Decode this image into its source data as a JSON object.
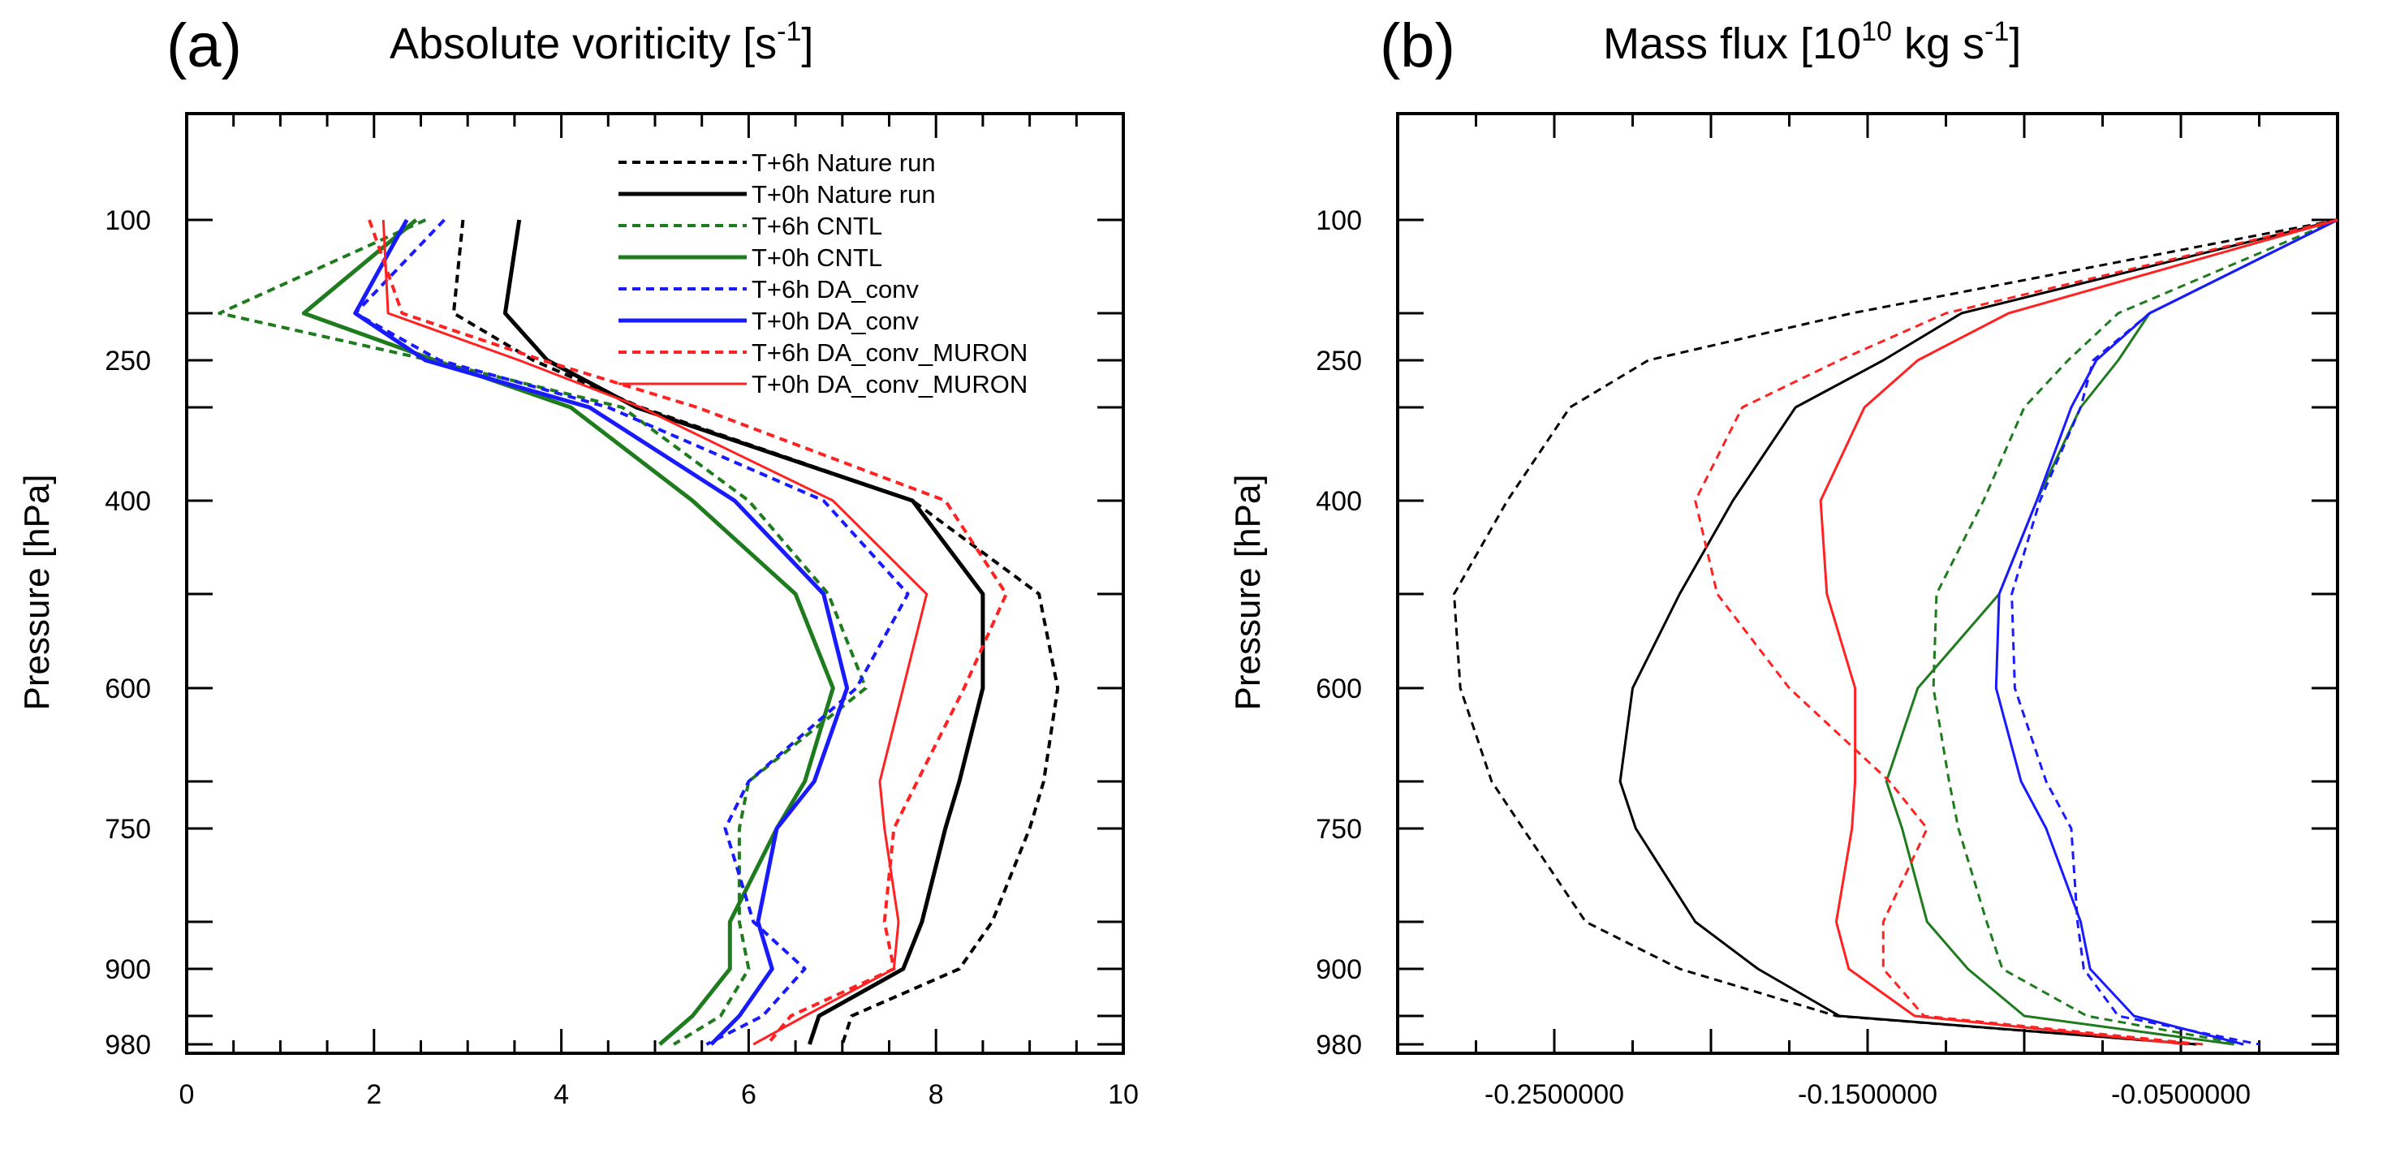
{
  "figure": {
    "panels": [
      {
        "letter": "(a)",
        "title_main": "Absolute voriticity  [s",
        "title_sup": "-1",
        "title_end": "]"
      },
      {
        "letter": "(b)",
        "title_main": "Mass flux  [10",
        "title_sup": "10",
        "title_mid": " kg s",
        "title_sup2": "-1",
        "title_end": "]"
      }
    ]
  },
  "colors": {
    "black": "#000000",
    "green": "#1e7b1e",
    "blue": "#1a1aff",
    "red": "#ff2222"
  },
  "chart_data": [
    {
      "type": "line",
      "panel": "a",
      "title": "Absolute voriticity  [s-1]",
      "xlabel": "",
      "ylabel": "Pressure  [hPa]",
      "xlim": [
        0,
        10
      ],
      "xticks": [
        0,
        2,
        4,
        6,
        8,
        10
      ],
      "xticklabels": [
        "0",
        "2",
        "4",
        "6",
        "8",
        "10"
      ],
      "y_levels_hPa": [
        100,
        200,
        250,
        300,
        400,
        500,
        600,
        700,
        750,
        850,
        900,
        950,
        980
      ],
      "yticklabels": [
        "100",
        "250",
        "400",
        "600",
        "750",
        "900",
        "980"
      ],
      "legend": {
        "location": "top-right",
        "entries": [
          "T+6h  Nature run",
          "T+0h  Nature run",
          "T+6h  CNTL",
          "T+0h  CNTL",
          "T+6h  DA_conv",
          "T+0h  DA_conv",
          "T+6h  DA_conv_MURON",
          "T+0h  DA_conv_MURON"
        ]
      },
      "series": [
        {
          "name": "T+6h  Nature run",
          "color": "black",
          "dashed": true,
          "width": 4,
          "values": [
            2.95,
            2.85,
            3.7,
            4.85,
            7.75,
            9.1,
            9.3,
            9.15,
            9.0,
            8.6,
            8.25,
            7.1,
            7.0
          ]
        },
        {
          "name": "T+0h  Nature run",
          "color": "black",
          "dashed": false,
          "width": 5,
          "values": [
            3.55,
            3.4,
            3.85,
            4.8,
            7.75,
            8.5,
            8.5,
            8.25,
            8.1,
            7.85,
            7.65,
            6.75,
            6.65
          ]
        },
        {
          "name": "T+6h  CNTL",
          "color": "green",
          "dashed": true,
          "width": 4,
          "values": [
            2.55,
            0.35,
            2.6,
            4.65,
            6.0,
            6.85,
            7.25,
            6.0,
            5.9,
            5.9,
            6.0,
            5.7,
            5.2
          ]
        },
        {
          "name": "T+0h  CNTL",
          "color": "green",
          "dashed": false,
          "width": 5,
          "values": [
            2.45,
            1.25,
            2.65,
            4.1,
            5.4,
            6.5,
            6.9,
            6.6,
            6.3,
            5.8,
            5.8,
            5.4,
            5.05
          ]
        },
        {
          "name": "T+6h  DA_conv",
          "color": "blue",
          "dashed": true,
          "width": 4,
          "values": [
            2.75,
            1.8,
            2.7,
            4.5,
            6.8,
            7.7,
            7.15,
            6.0,
            5.75,
            6.05,
            6.6,
            6.15,
            5.55
          ]
        },
        {
          "name": "T+0h  DA_conv",
          "color": "blue",
          "dashed": false,
          "width": 5,
          "values": [
            2.35,
            1.8,
            2.55,
            4.3,
            5.85,
            6.8,
            7.05,
            6.7,
            6.3,
            6.1,
            6.25,
            5.9,
            5.6
          ]
        },
        {
          "name": "T+6h  DA_conv_MURON",
          "color": "red",
          "dashed": true,
          "width": 4,
          "values": [
            1.95,
            2.3,
            3.8,
            5.45,
            8.1,
            8.75,
            8.3,
            7.8,
            7.55,
            7.45,
            7.55,
            6.45,
            6.2
          ]
        },
        {
          "name": "T+0h  DA_conv_MURON",
          "color": "red",
          "dashed": false,
          "width": 3,
          "values": [
            2.1,
            2.15,
            3.55,
            4.85,
            6.9,
            7.9,
            7.65,
            7.4,
            7.45,
            7.6,
            7.55,
            6.6,
            6.05
          ]
        }
      ]
    },
    {
      "type": "line",
      "panel": "b",
      "title": "Mass flux  [10^10 kg s-1]",
      "xlabel": "",
      "ylabel": "Pressure [hPa]",
      "xlim": [
        -0.3,
        0.0
      ],
      "xticks": [
        -0.25,
        -0.15,
        -0.05
      ],
      "xticklabels": [
        "-0.2500000",
        "-0.1500000",
        "-0.0500000"
      ],
      "y_levels_hPa": [
        100,
        200,
        250,
        300,
        400,
        500,
        600,
        700,
        750,
        850,
        900,
        950,
        980
      ],
      "yticklabels": [
        "100",
        "250",
        "400",
        "600",
        "750",
        "900",
        "980"
      ],
      "series": [
        {
          "name": "T+6h  Nature run",
          "color": "black",
          "dashed": true,
          "width": 3,
          "values": [
            0.0,
            -0.155,
            -0.22,
            -0.245,
            -0.265,
            -0.282,
            -0.28,
            -0.27,
            -0.26,
            -0.24,
            -0.21,
            -0.16,
            -0.045
          ]
        },
        {
          "name": "T+0h  Nature run",
          "color": "black",
          "dashed": false,
          "width": 3,
          "values": [
            0.0,
            -0.12,
            -0.145,
            -0.173,
            -0.193,
            -0.21,
            -0.225,
            -0.229,
            -0.224,
            -0.205,
            -0.185,
            -0.159,
            -0.045
          ]
        },
        {
          "name": "T+6h  CNTL",
          "color": "green",
          "dashed": true,
          "width": 3,
          "values": [
            0.0,
            -0.07,
            -0.086,
            -0.1,
            -0.113,
            -0.128,
            -0.129,
            -0.124,
            -0.121,
            -0.112,
            -0.107,
            -0.08,
            -0.03
          ]
        },
        {
          "name": "T+0h  CNTL",
          "color": "green",
          "dashed": false,
          "width": 3,
          "values": [
            0.0,
            -0.06,
            -0.07,
            -0.082,
            -0.096,
            -0.108,
            -0.134,
            -0.144,
            -0.139,
            -0.131,
            -0.118,
            -0.1,
            -0.033
          ]
        },
        {
          "name": "T+6h  DA_conv",
          "color": "blue",
          "dashed": true,
          "width": 3,
          "values": [
            0.0,
            -0.06,
            -0.078,
            -0.082,
            -0.095,
            -0.104,
            -0.103,
            -0.093,
            -0.085,
            -0.083,
            -0.081,
            -0.07,
            -0.025
          ]
        },
        {
          "name": "T+0h  DA_conv",
          "color": "blue",
          "dashed": false,
          "width": 3,
          "values": [
            0.0,
            -0.06,
            -0.077,
            -0.085,
            -0.096,
            -0.108,
            -0.109,
            -0.101,
            -0.093,
            -0.082,
            -0.079,
            -0.065,
            -0.03
          ]
        },
        {
          "name": "T+6h  DA_conv_MURON",
          "color": "red",
          "dashed": true,
          "width": 3,
          "values": [
            0.0,
            -0.125,
            -0.159,
            -0.19,
            -0.205,
            -0.198,
            -0.175,
            -0.143,
            -0.131,
            -0.145,
            -0.145,
            -0.132,
            -0.043
          ]
        },
        {
          "name": "T+0h  DA_conv_MURON",
          "color": "red",
          "dashed": false,
          "width": 3,
          "values": [
            0.0,
            -0.105,
            -0.134,
            -0.151,
            -0.165,
            -0.163,
            -0.154,
            -0.154,
            -0.155,
            -0.16,
            -0.156,
            -0.135,
            -0.048
          ]
        }
      ]
    }
  ]
}
